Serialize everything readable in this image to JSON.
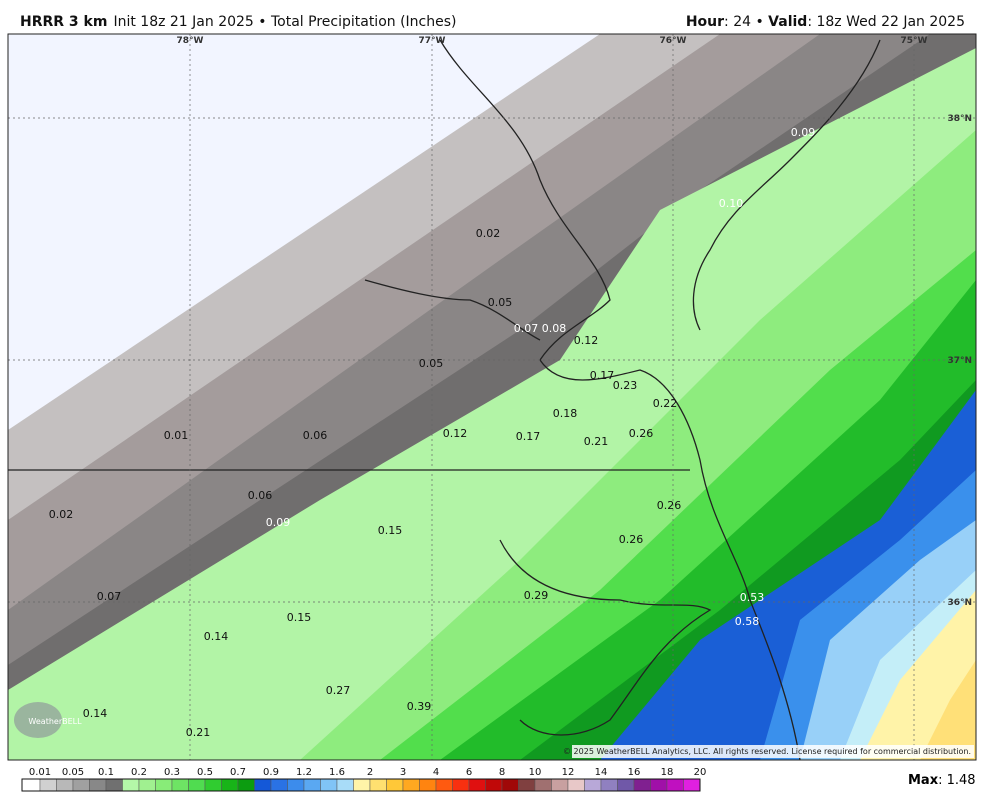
{
  "header": {
    "model": "HRRR 3 km",
    "info": "Init 18z 21 Jan 2025 • Total Precipitation (Inches)",
    "hour_label": "Hour",
    "hour_value": ": 24 • ",
    "valid_label": "Valid",
    "valid_value": ": 18z Wed 22 Jan 2025"
  },
  "map": {
    "lon_labels": [
      "78°W",
      "77°W",
      "76°W",
      "75°W"
    ],
    "lat_labels": [
      "38°N",
      "37°N",
      "36°N"
    ],
    "point_values": [
      "0.09",
      "0.10",
      "0.02",
      "0.05",
      "0.07",
      "0.08",
      "0.12",
      "0.05",
      "0.17",
      "0.23",
      "0.22",
      "0.18",
      "0.01",
      "0.06",
      "0.12",
      "0.17",
      "0.21",
      "0.26",
      "0.06",
      "0.26",
      "0.02",
      "0.09",
      "0.15",
      "0.26",
      "0.07",
      "0.29",
      "0.53",
      "0.58",
      "0.15",
      "0.14",
      "0.27",
      "0.39",
      "0.14",
      "0.21"
    ],
    "logo": "WeatherBELL",
    "copyright": "© 2025 WeatherBELL Analytics, LLC. All rights reserved. License required for commercial distribution."
  },
  "colorbar": {
    "labels": [
      "0.01",
      "0.05",
      "0.1",
      "0.2",
      "0.3",
      "0.5",
      "0.7",
      "0.9",
      "1.2",
      "1.6",
      "2",
      "3",
      "4",
      "6",
      "8",
      "10",
      "12",
      "14",
      "16",
      "18",
      "20"
    ],
    "colors": [
      "#ffffff",
      "#d0d0d0",
      "#b8b8b8",
      "#a0a0a0",
      "#888888",
      "#707070",
      "#b4f8a8",
      "#a0f090",
      "#88ec78",
      "#6ee464",
      "#50dc50",
      "#30cc30",
      "#18b418",
      "#0c9c10",
      "#1458d8",
      "#2a72e4",
      "#3c8cec",
      "#5aa8f2",
      "#80c4f6",
      "#a8dcf8",
      "#fff4a8",
      "#ffe070",
      "#ffc838",
      "#ffa820",
      "#ff8410",
      "#ff5a10",
      "#f83010",
      "#e01010",
      "#c00808",
      "#a00808",
      "#804040",
      "#a07070",
      "#c8a0a0",
      "#e8c8c8",
      "#b8a8d8",
      "#9080c0",
      "#7058a8",
      "#802090",
      "#a010a8",
      "#c010c0",
      "#e020e0"
    ]
  },
  "max": {
    "label": "Max",
    "value": ": 1.48"
  }
}
